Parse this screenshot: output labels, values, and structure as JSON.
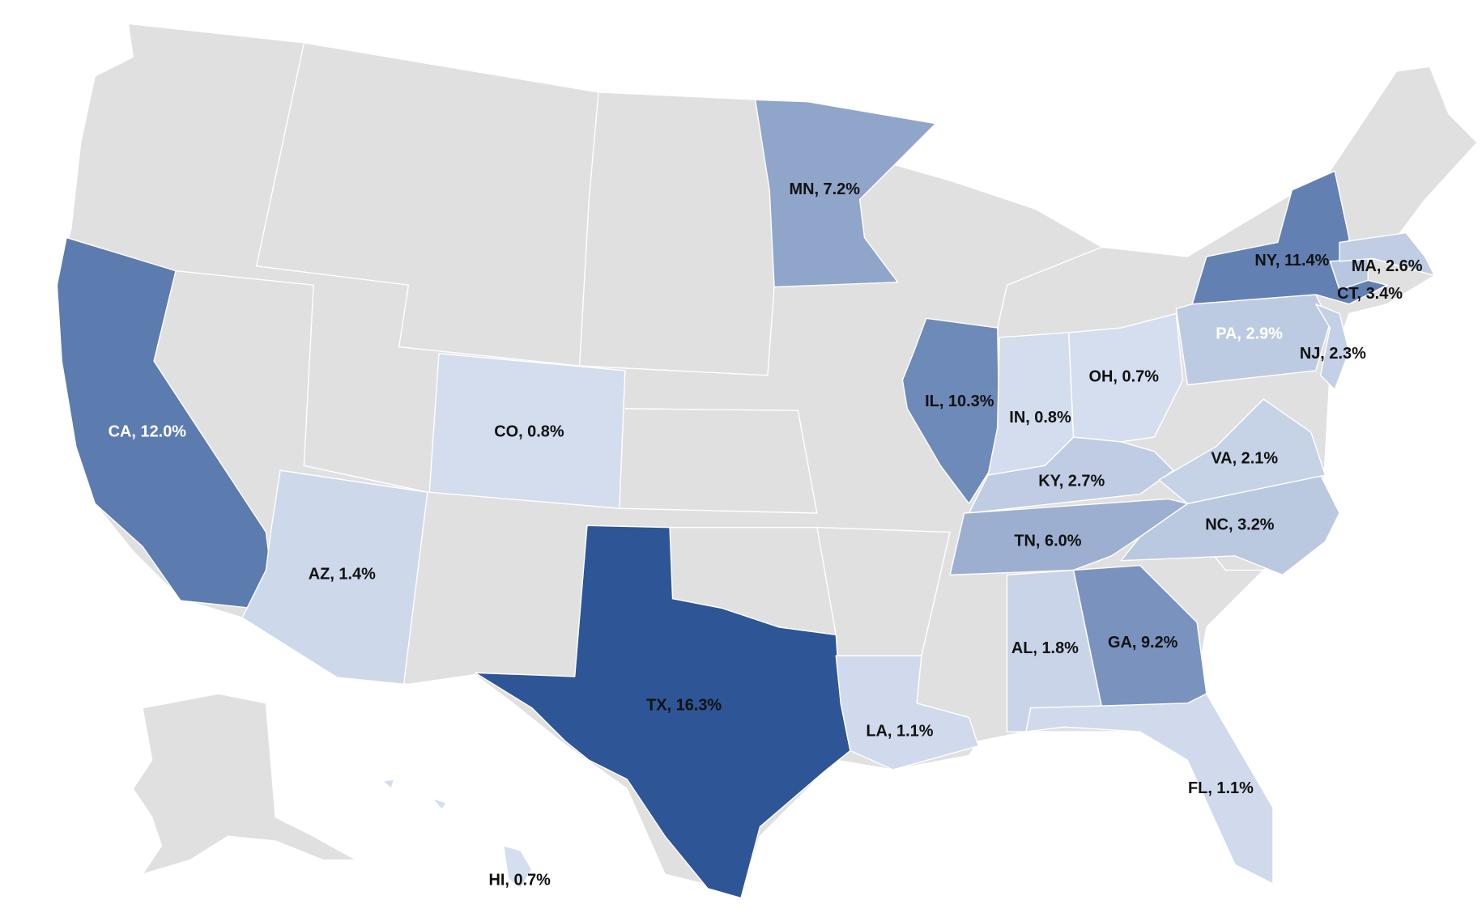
{
  "regions": [
    {
      "label": "TX, 16.3%",
      "value": 16.3
    },
    {
      "label": "CA, 12.0%",
      "value": 12.0,
      "text_color": "#ffffff"
    },
    {
      "label": "AZ, 1.4%",
      "value": 1.4
    },
    {
      "label": "CO, 0.8%",
      "value": 0.8
    },
    {
      "label": "MN, 7.2%",
      "value": 7.2
    },
    {
      "label": "IL, 10.3%",
      "value": 10.3
    },
    {
      "label": "IN, 0.8%",
      "value": 0.8
    },
    {
      "label": "OH, 0.7%",
      "value": 0.7
    },
    {
      "label": "KY, 2.7%",
      "value": 2.7
    },
    {
      "label": "TN, 6.0%",
      "value": 6.0
    },
    {
      "label": "AL, 1.8%",
      "value": 1.8
    },
    {
      "label": "GA, 9.2%",
      "value": 9.2
    },
    {
      "label": "FL, 1.1%",
      "value": 1.1
    },
    {
      "label": "LA, 1.1%",
      "value": 1.1
    },
    {
      "label": "NC, 3.2%",
      "value": 3.2
    },
    {
      "label": "VA, 2.1%",
      "value": 2.1
    },
    {
      "label": "PA, 2.9%",
      "value": 2.9,
      "text_color": "#ffffff"
    },
    {
      "label": "NJ, 2.3%",
      "value": 2.3
    },
    {
      "label": "NY, 11.4%",
      "value": 11.4
    },
    {
      "label": "CT, 3.4%",
      "value": 3.4
    },
    {
      "label": "MA, 2.6%",
      "value": 2.6
    },
    {
      "label": "HI, 0.7%",
      "value": 0.7
    }
  ],
  "color_scale": [
    "#dce4f2",
    "#2e5596"
  ],
  "no_data_color": "#e0e0e0",
  "label_color": "#111111"
}
